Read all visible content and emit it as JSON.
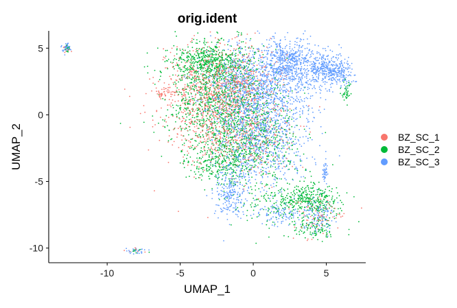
{
  "chart_data": {
    "type": "scatter",
    "title": "orig.ident",
    "xlabel": "UMAP_1",
    "ylabel": "UMAP_2",
    "xlim": [
      -14,
      7.7
    ],
    "ylim": [
      -11.1,
      6.3
    ],
    "x_ticks": [
      -10,
      -5,
      0,
      5
    ],
    "y_ticks": [
      -10,
      -5,
      0,
      5
    ],
    "grid": false,
    "legend_position": "right",
    "series": [
      {
        "name": "BZ_SC_1",
        "color": "#F8766D",
        "clusters": [
          {
            "cx": -3.2,
            "cy": 1.0,
            "sx": 1.6,
            "sy": 2.2,
            "n": 700
          },
          {
            "cx": -1.5,
            "cy": 2.5,
            "sx": 1.6,
            "sy": 1.5,
            "n": 400
          },
          {
            "cx": -0.5,
            "cy": -1.5,
            "sx": 1.6,
            "sy": 1.5,
            "n": 350
          },
          {
            "cx": -6.0,
            "cy": 1.6,
            "sx": 0.35,
            "sy": 0.25,
            "n": 40
          },
          {
            "cx": 4.5,
            "cy": -7.5,
            "sx": 1.0,
            "sy": 0.8,
            "n": 80
          },
          {
            "cx": -12.8,
            "cy": 5.0,
            "sx": 0.15,
            "sy": 0.15,
            "n": 10
          },
          {
            "cx": -8.0,
            "cy": -10.2,
            "sx": 0.3,
            "sy": 0.1,
            "n": 8
          }
        ]
      },
      {
        "name": "BZ_SC_2",
        "color": "#00BA38",
        "clusters": [
          {
            "cx": -2.5,
            "cy": 1.5,
            "sx": 1.7,
            "sy": 2.2,
            "n": 1100
          },
          {
            "cx": -3.0,
            "cy": 4.0,
            "sx": 1.2,
            "sy": 0.6,
            "n": 350
          },
          {
            "cx": -2.2,
            "cy": -3.5,
            "sx": 1.2,
            "sy": 0.8,
            "n": 300
          },
          {
            "cx": 0.0,
            "cy": -1.5,
            "sx": 1.6,
            "sy": 1.6,
            "n": 500
          },
          {
            "cx": 3.8,
            "cy": -6.4,
            "sx": 1.0,
            "sy": 0.6,
            "n": 320
          },
          {
            "cx": 4.2,
            "cy": -8.4,
            "sx": 0.8,
            "sy": 0.5,
            "n": 120
          },
          {
            "cx": 1.5,
            "cy": -6.5,
            "sx": 1.6,
            "sy": 1.2,
            "n": 150
          },
          {
            "cx": 6.3,
            "cy": 1.8,
            "sx": 0.2,
            "sy": 0.4,
            "n": 40
          },
          {
            "cx": -12.8,
            "cy": 5.0,
            "sx": 0.15,
            "sy": 0.15,
            "n": 12
          },
          {
            "cx": -8.0,
            "cy": -10.2,
            "sx": 0.3,
            "sy": 0.1,
            "n": 8
          }
        ]
      },
      {
        "name": "BZ_SC_3",
        "color": "#619CFF",
        "clusters": [
          {
            "cx": 2.5,
            "cy": 4.0,
            "sx": 1.0,
            "sy": 0.8,
            "n": 550
          },
          {
            "cx": 5.3,
            "cy": 3.3,
            "sx": 0.8,
            "sy": 0.6,
            "n": 420
          },
          {
            "cx": 1.5,
            "cy": 2.0,
            "sx": 1.5,
            "sy": 1.2,
            "n": 400
          },
          {
            "cx": 0.5,
            "cy": -1.5,
            "sx": 1.5,
            "sy": 2.0,
            "n": 900
          },
          {
            "cx": -0.8,
            "cy": 2.5,
            "sx": 1.3,
            "sy": 1.5,
            "n": 500
          },
          {
            "cx": -1.5,
            "cy": -5.8,
            "sx": 0.6,
            "sy": 1.2,
            "n": 250
          },
          {
            "cx": 1.8,
            "cy": -7.4,
            "sx": 0.8,
            "sy": 0.4,
            "n": 100
          },
          {
            "cx": 4.5,
            "cy": -7.6,
            "sx": 0.6,
            "sy": 0.6,
            "n": 120
          },
          {
            "cx": 4.9,
            "cy": -4.2,
            "sx": 0.12,
            "sy": 0.4,
            "n": 40
          },
          {
            "cx": -12.8,
            "cy": 5.0,
            "sx": 0.15,
            "sy": 0.18,
            "n": 40
          },
          {
            "cx": -8.0,
            "cy": -10.2,
            "sx": 0.35,
            "sy": 0.12,
            "n": 30
          }
        ]
      }
    ]
  }
}
